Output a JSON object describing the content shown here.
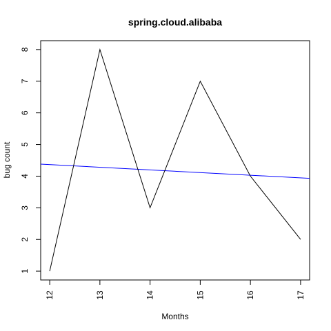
{
  "chart_data": {
    "type": "line",
    "title": "spring.cloud.alibaba",
    "xlabel": "Months",
    "ylabel": "bug count",
    "x": [
      12,
      13,
      14,
      15,
      16,
      17
    ],
    "xlim": [
      11.82,
      17.18
    ],
    "ylim": [
      0.72,
      8.28
    ],
    "xticks": [
      "12",
      "13",
      "14",
      "15",
      "16",
      "17"
    ],
    "yticks": [
      "1",
      "2",
      "3",
      "4",
      "5",
      "6",
      "7",
      "8"
    ],
    "grid": false,
    "series": [
      {
        "values": [
          1,
          8,
          3,
          7,
          4,
          2
        ],
        "color": "#000000"
      }
    ],
    "trend_line": {
      "x": [
        11.82,
        17.18
      ],
      "y": [
        4.38,
        3.93
      ],
      "color": "#0000ff"
    }
  }
}
